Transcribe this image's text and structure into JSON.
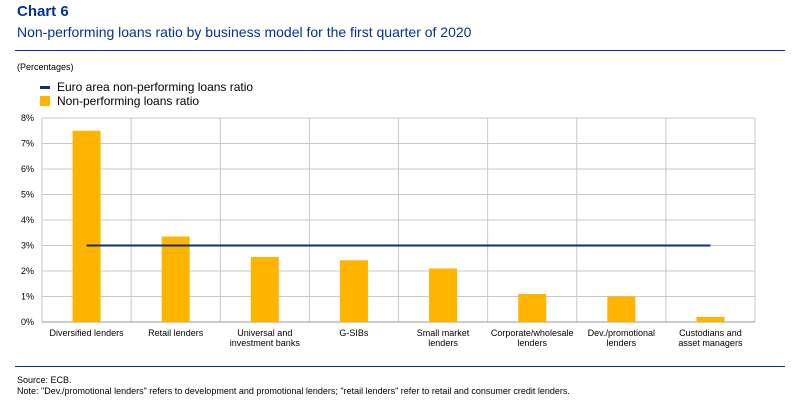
{
  "header": {
    "chart_number": "Chart 6",
    "title": "Non-performing loans ratio by business model for the first quarter of 2020"
  },
  "unit_label": "(Percentages)",
  "legend": {
    "line_label": "Euro area non-performing loans ratio",
    "bar_label": "Non-performing loans ratio"
  },
  "colors": {
    "bar": "#ffb400",
    "line": "#0c2f7a",
    "title": "#003299",
    "grid": "#c8c8c8"
  },
  "chart_data": {
    "type": "bar",
    "categories": [
      [
        "Diversified lenders"
      ],
      [
        "Retail lenders"
      ],
      [
        "Universal and",
        "investment banks"
      ],
      [
        "G-SIBs"
      ],
      [
        "Small market",
        "lenders"
      ],
      [
        "Corporate/wholesale",
        "lenders"
      ],
      [
        "Dev./promotional",
        "lenders"
      ],
      [
        "Custodians and",
        "asset managers"
      ]
    ],
    "series": [
      {
        "name": "Non-performing loans ratio",
        "values": [
          7.5,
          3.35,
          2.55,
          2.42,
          2.1,
          1.1,
          1.0,
          0.2
        ]
      }
    ],
    "reference_line": {
      "name": "Euro area non-performing loans ratio",
      "value": 3.0
    },
    "y_ticks": [
      "0%",
      "1%",
      "2%",
      "3%",
      "4%",
      "5%",
      "6%",
      "7%",
      "8%"
    ],
    "ylim": [
      0,
      8
    ],
    "grid": true,
    "legend_position": "top-left"
  },
  "footer": {
    "source": "Source: ECB.",
    "note": "Note: \"Dev./promotional lenders\" refers to development and promotional lenders; \"retail lenders\" refer to retail and consumer credit lenders."
  }
}
